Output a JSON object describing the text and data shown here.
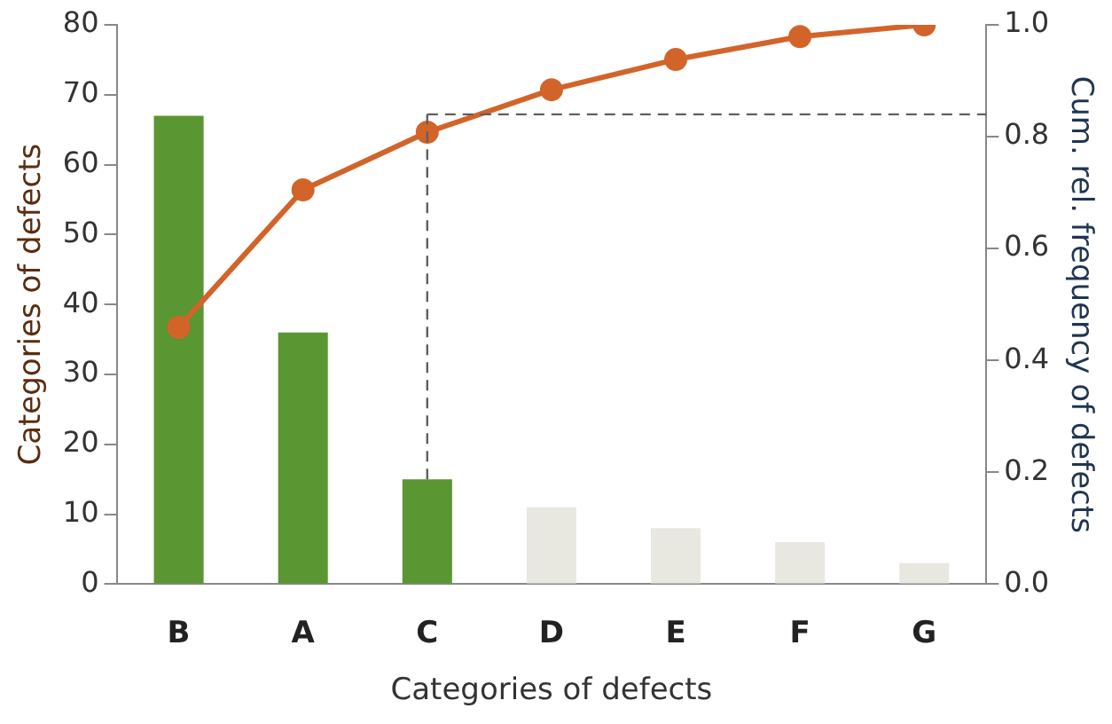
{
  "chart_data": {
    "type": "bar",
    "xlabel": "Categories of defects",
    "ylabel": "Categories of defects",
    "y2label": "Cum. rel. frequency of defects",
    "categories": [
      "B",
      "A",
      "C",
      "D",
      "E",
      "F",
      "G"
    ],
    "series": [
      {
        "colors": [
          "#5a9632",
          "#5a9632",
          "#5a9632",
          "#e8e8e0",
          "#e8e8e0",
          "#e8e8e0",
          "#e8e8e0"
        ],
        "values": [
          67,
          36,
          15,
          11,
          8,
          6,
          3
        ]
      },
      {
        "type": "line",
        "axis": "y2",
        "color": "#d2642a",
        "values": [
          0.459,
          0.705,
          0.808,
          0.884,
          0.938,
          0.979,
          1.0
        ],
        "marker": "circle"
      }
    ],
    "ylim": [
      0,
      80
    ],
    "yticks": [
      0,
      10,
      20,
      30,
      40,
      50,
      60,
      70,
      80
    ],
    "y2lim": [
      0,
      1
    ],
    "y2ticks": [
      {
        "value": 0,
        "label": "0.0"
      },
      {
        "value": 0.2,
        "label": "0.2"
      },
      {
        "value": 0.4,
        "label": "0.4"
      },
      {
        "value": 0.6,
        "label": "0.6"
      },
      {
        "value": 0.8,
        "label": "0.8"
      },
      {
        "value": 1,
        "label": "1.0"
      }
    ],
    "ref_lines": [
      {
        "axis": "y2",
        "value": 0.84,
        "color": "#606060",
        "line_style": "dashed"
      },
      {
        "axis": "x",
        "value": "C",
        "color": "#606060",
        "line_style": "dashed"
      }
    ],
    "grid": false,
    "legend": false
  }
}
